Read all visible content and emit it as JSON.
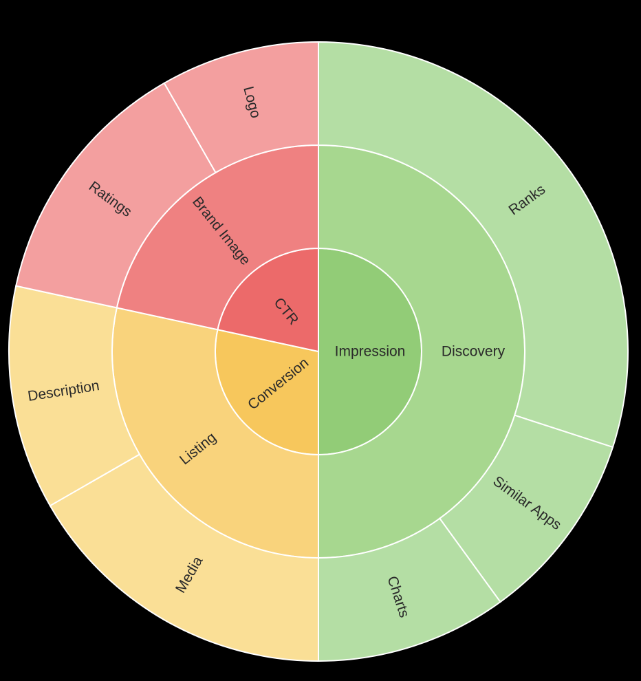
{
  "chart_data": {
    "type": "sunburst",
    "title": "",
    "root": {
      "children": [
        {
          "name": "Impression",
          "value": 50,
          "color": "#92cc77",
          "children": [
            {
              "name": "Discovery",
              "value": 50,
              "color": "#a7d78f",
              "children": [
                {
                  "name": "Ranks",
                  "value": 30,
                  "color": "#b4dea4"
                },
                {
                  "name": "Similar Apps",
                  "value": 10,
                  "color": "#b4dea4"
                },
                {
                  "name": "Charts",
                  "value": 10,
                  "color": "#b4dea4"
                }
              ]
            }
          ]
        },
        {
          "name": "Conversion",
          "value": 28.4,
          "color": "#f7c75c",
          "children": [
            {
              "name": "Listing",
              "value": 28.4,
              "color": "#f9d37c",
              "children": [
                {
                  "name": "Media",
                  "value": 16.7,
                  "color": "#fadf96"
                },
                {
                  "name": "Description",
                  "value": 11.7,
                  "color": "#fadf96"
                }
              ]
            }
          ]
        },
        {
          "name": "CTR",
          "value": 21.6,
          "color": "#ec6a6a",
          "children": [
            {
              "name": "Brand Image",
              "value": 21.6,
              "color": "#ef8181",
              "children": [
                {
                  "name": "Ratings",
                  "value": 13.3,
                  "color": "#f39f9f"
                },
                {
                  "name": "Logo",
                  "value": 8.3,
                  "color": "#f39f9f"
                }
              ]
            }
          ]
        }
      ]
    }
  }
}
